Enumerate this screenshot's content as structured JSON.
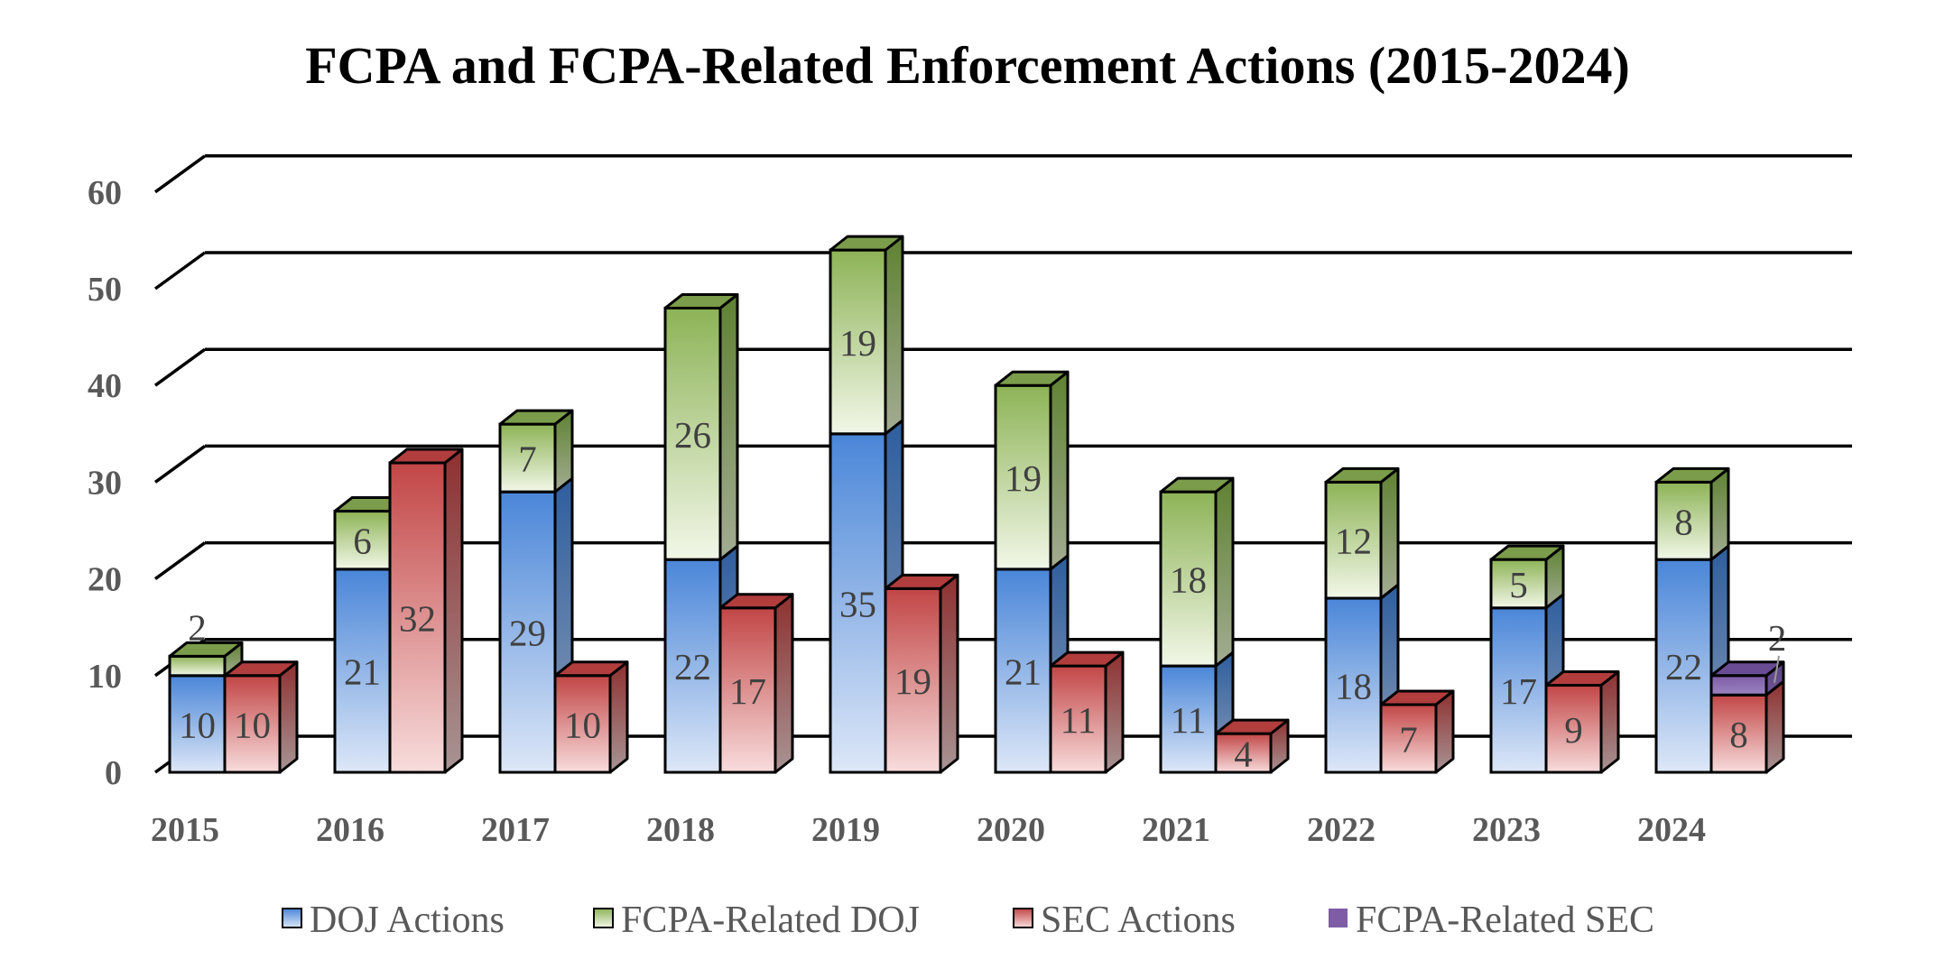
{
  "chart_data": {
    "type": "bar",
    "variant": "3d-clustered-stacked",
    "title": "FCPA and FCPA-Related Enforcement Actions (2015-2024)",
    "categories": [
      "2015",
      "2016",
      "2017",
      "2018",
      "2019",
      "2020",
      "2021",
      "2022",
      "2023",
      "2024"
    ],
    "yticks": [
      "0",
      "10",
      "20",
      "30",
      "40",
      "50",
      "60"
    ],
    "ylim": [
      0,
      60
    ],
    "xlabel": "",
    "ylabel": "",
    "grid": true,
    "legend_position": "bottom",
    "stacks": [
      {
        "name": "DOJ",
        "series": [
          "DOJ Actions",
          "FCPA-Related DOJ"
        ]
      },
      {
        "name": "SEC",
        "series": [
          "SEC Actions",
          "FCPA-Related SEC"
        ]
      }
    ],
    "series": [
      {
        "name": "DOJ Actions",
        "color": "#4A86D8",
        "values": [
          10,
          21,
          29,
          22,
          35,
          21,
          11,
          18,
          17,
          22
        ],
        "labels": [
          "10",
          "21",
          "29",
          "22",
          "35",
          "21",
          "11",
          "18",
          "17",
          "22"
        ]
      },
      {
        "name": "FCPA-Related DOJ",
        "color": "#8DB356",
        "values": [
          2,
          6,
          7,
          26,
          19,
          19,
          18,
          12,
          5,
          8
        ],
        "labels": [
          "2",
          "6",
          "7",
          "26",
          "19",
          "19",
          "18",
          "12",
          "5",
          "8"
        ]
      },
      {
        "name": "SEC Actions",
        "color": "#C9504F",
        "values": [
          10,
          32,
          10,
          17,
          19,
          11,
          4,
          7,
          9,
          8
        ],
        "labels": [
          "10",
          "32",
          "10",
          "17",
          "19",
          "11",
          "4",
          "7",
          "9",
          "8"
        ]
      },
      {
        "name": "FCPA-Related SEC",
        "color": "#7E5DA6",
        "values": [
          0,
          0,
          0,
          0,
          0,
          0,
          0,
          0,
          0,
          2
        ],
        "labels": [
          "",
          "",
          "",
          "",
          "",
          "",
          "",
          "",
          "",
          "2"
        ]
      }
    ]
  }
}
